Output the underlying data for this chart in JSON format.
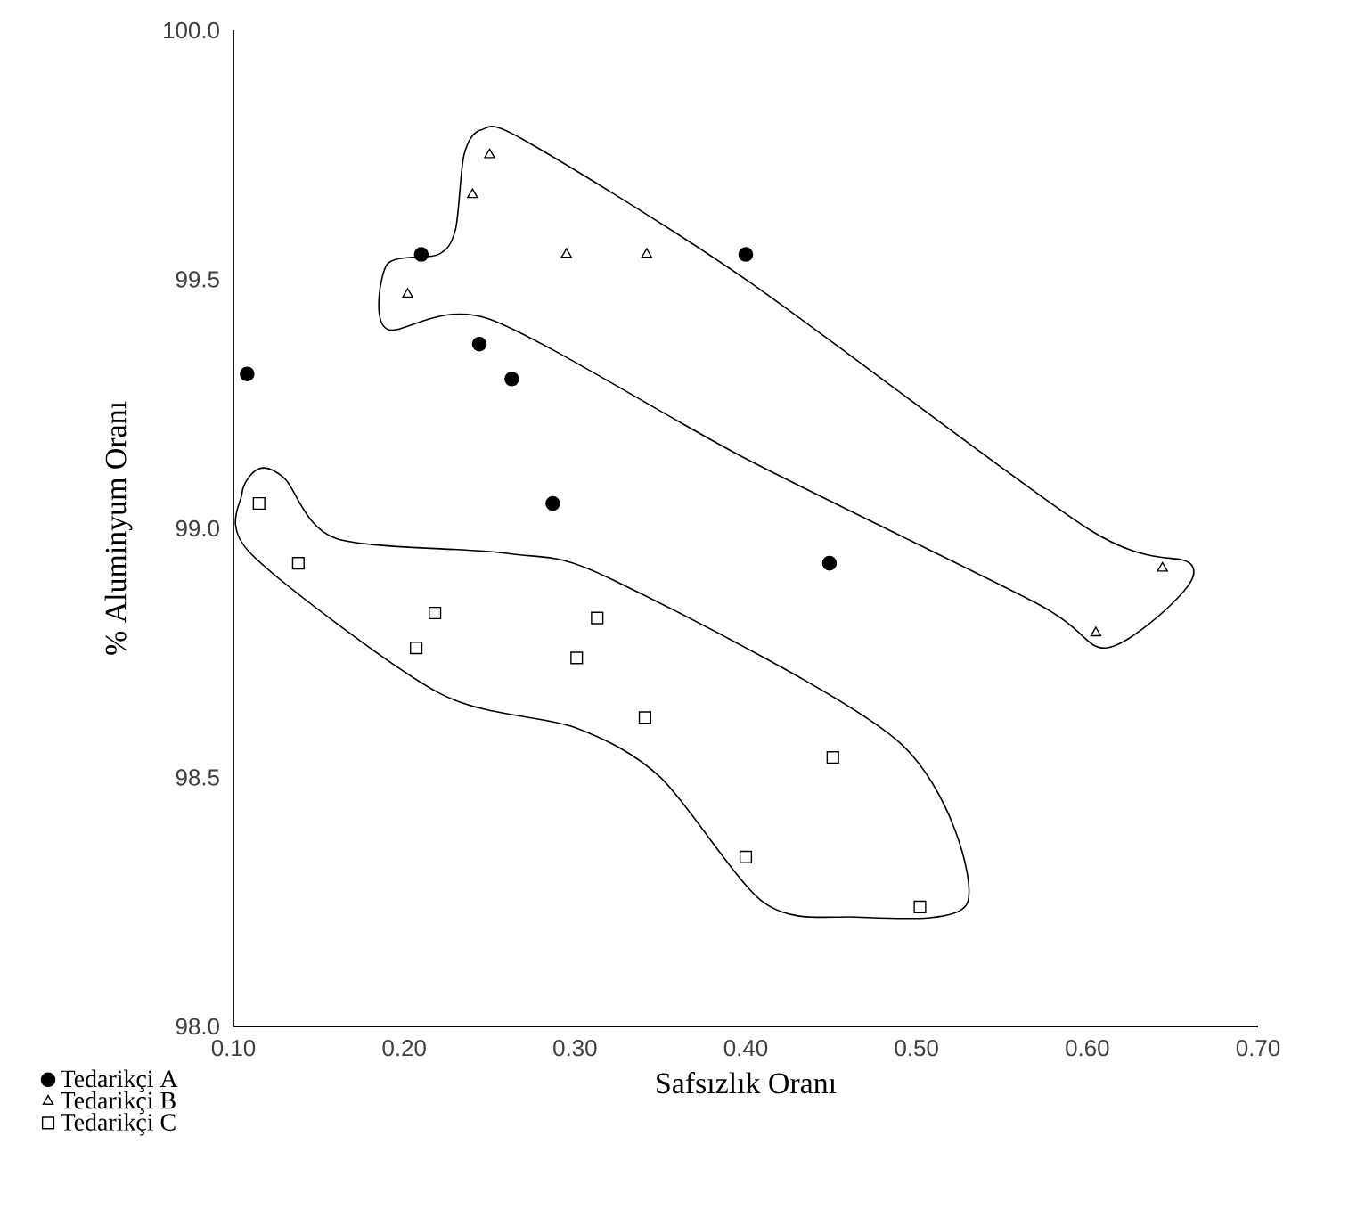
{
  "chart_data": {
    "type": "scatter",
    "xlabel": "Safsızlık Oranı",
    "ylabel": "% Aluminyum Oranı",
    "xlim": [
      0.1,
      0.7
    ],
    "xticks": [
      {
        "value": 0.1,
        "label": "0.10"
      },
      {
        "value": 0.2,
        "label": "0.20"
      },
      {
        "value": 0.3,
        "label": "0.30"
      },
      {
        "value": 0.4,
        "label": "0.40"
      },
      {
        "value": 0.5,
        "label": "0.50"
      },
      {
        "value": 0.6,
        "label": "0.60"
      },
      {
        "value": 0.7,
        "label": "0.70"
      }
    ],
    "ylim": [
      98.0,
      100.0
    ],
    "yticks": [
      {
        "value": 98.0,
        "label": "98.0"
      },
      {
        "value": 98.5,
        "label": "98.5"
      },
      {
        "value": 99.0,
        "label": "99.0"
      },
      {
        "value": 99.5,
        "label": "99.5"
      },
      {
        "value": 100.0,
        "label": "100.0"
      }
    ],
    "grid": false,
    "legend": "bottom left",
    "series": [
      {
        "name": "Tedarikçi A",
        "color": "#000000",
        "marker": "circle",
        "x": [
          0.21,
          0.4,
          0.108,
          0.244,
          0.263,
          0.287,
          0.449
        ],
        "values": [
          99.55,
          99.55,
          99.31,
          99.37,
          99.3,
          99.05,
          98.93
        ]
      },
      {
        "name": "Tedarikçi B",
        "color": "#000000",
        "marker": "triangle",
        "x": [
          0.25,
          0.24,
          0.202,
          0.295,
          0.342,
          0.644,
          0.605
        ],
        "values": [
          99.75,
          99.67,
          99.47,
          99.55,
          99.55,
          98.92,
          98.79
        ]
      },
      {
        "name": "Tedarikçi C",
        "color": "#000000",
        "marker": "square",
        "x": [
          0.115,
          0.138,
          0.218,
          0.207,
          0.313,
          0.301,
          0.341,
          0.451,
          0.4,
          0.502
        ],
        "values": [
          99.05,
          98.93,
          98.83,
          98.76,
          98.82,
          98.74,
          98.62,
          98.54,
          98.34,
          98.24
        ]
      }
    ]
  }
}
